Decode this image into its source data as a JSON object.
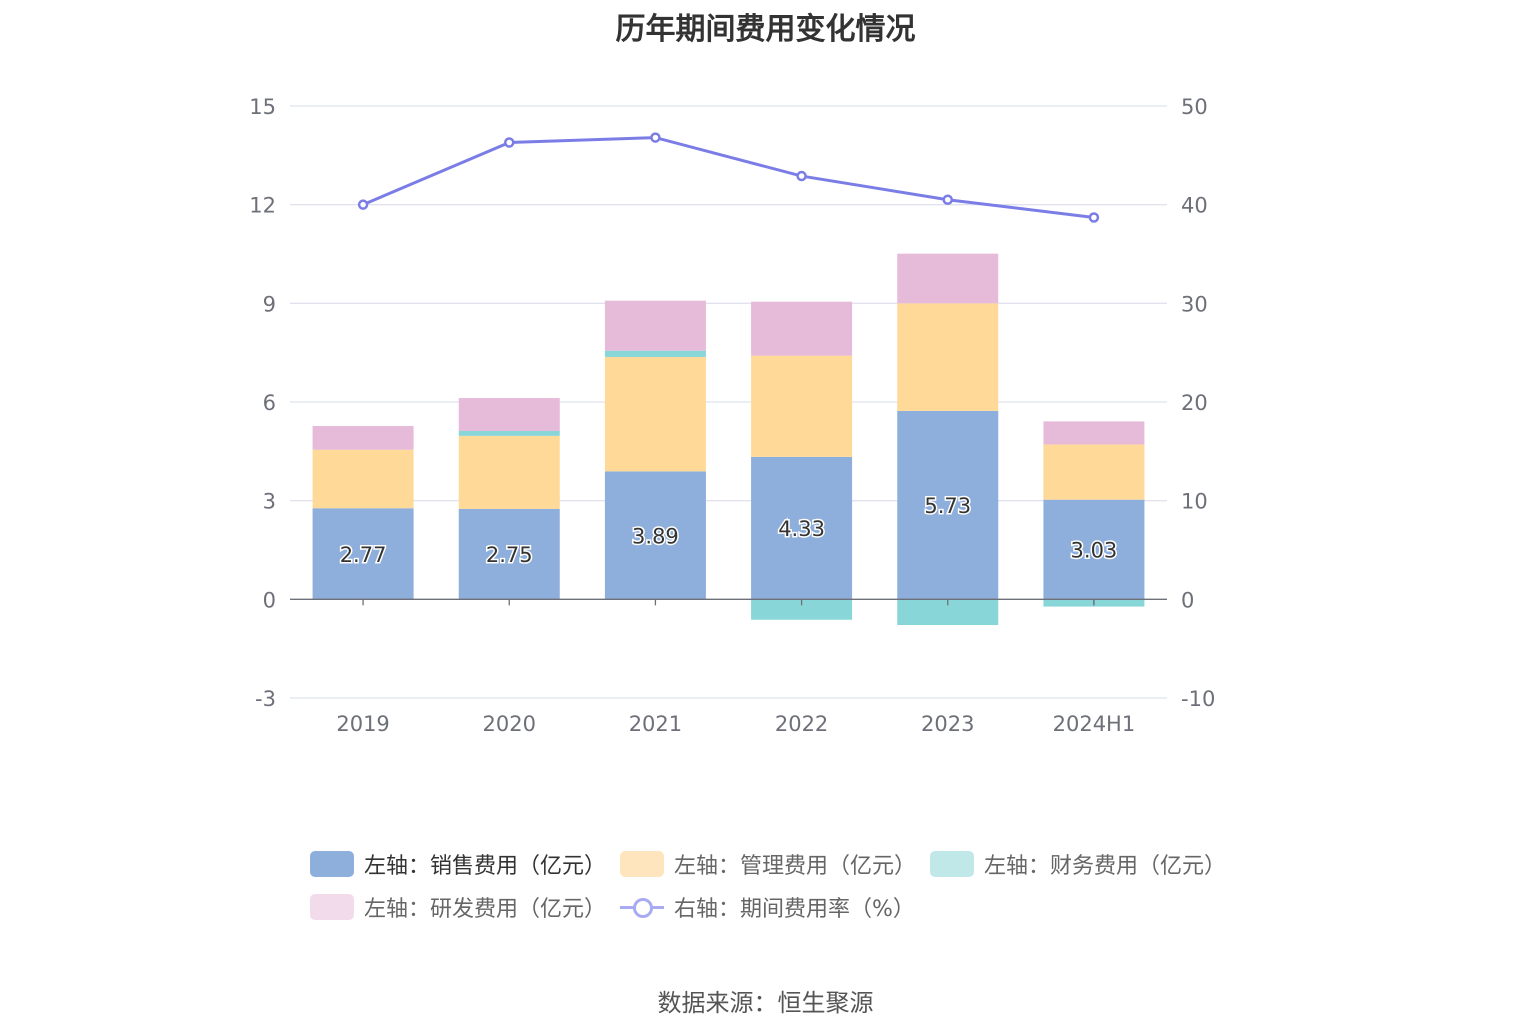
{
  "title": "历年期间费用变化情况",
  "source": "数据来源：恒生聚源",
  "chart_data": {
    "type": "bar",
    "stacked": true,
    "categories": [
      "2019",
      "2020",
      "2021",
      "2022",
      "2023",
      "2024H1"
    ],
    "left_axis": {
      "ticks": [
        "15",
        "12",
        "9",
        "6",
        "3",
        "0",
        "-3"
      ],
      "ylim": [
        -3,
        15
      ]
    },
    "right_axis": {
      "ticks": [
        "50",
        "40",
        "30",
        "20",
        "10",
        "0",
        "-10"
      ],
      "ylim": [
        -10,
        50
      ]
    },
    "series": [
      {
        "name": "左轴：销售费用（亿元）",
        "axis": "left",
        "type": "bar",
        "color": "#8eaedb",
        "values": [
          2.77,
          2.75,
          3.89,
          4.33,
          5.73,
          3.03
        ],
        "labels": [
          "2.77",
          "2.75",
          "3.89",
          "4.33",
          "5.73",
          "3.03"
        ]
      },
      {
        "name": "左轴：管理费用（亿元）",
        "axis": "left",
        "type": "bar",
        "color": "#ffd998",
        "values": [
          1.78,
          2.22,
          3.48,
          3.08,
          3.27,
          1.68
        ]
      },
      {
        "name": "左轴：财务费用（亿元）",
        "axis": "left",
        "type": "bar",
        "color": "#88d6d8",
        "values": [
          0.0,
          0.15,
          0.19,
          -0.62,
          -0.78,
          -0.22
        ]
      },
      {
        "name": "左轴：研发费用（亿元）",
        "axis": "left",
        "type": "bar",
        "color": "#e6bad9",
        "values": [
          0.72,
          1.0,
          1.52,
          1.64,
          1.51,
          0.7
        ]
      },
      {
        "name": "右轴：期间费用率（%）",
        "axis": "right",
        "type": "line",
        "color": "#7b7de6",
        "values": [
          40.0,
          46.3,
          46.8,
          42.9,
          40.5,
          38.7
        ]
      }
    ],
    "legend_position": "bottom",
    "grid": true
  }
}
